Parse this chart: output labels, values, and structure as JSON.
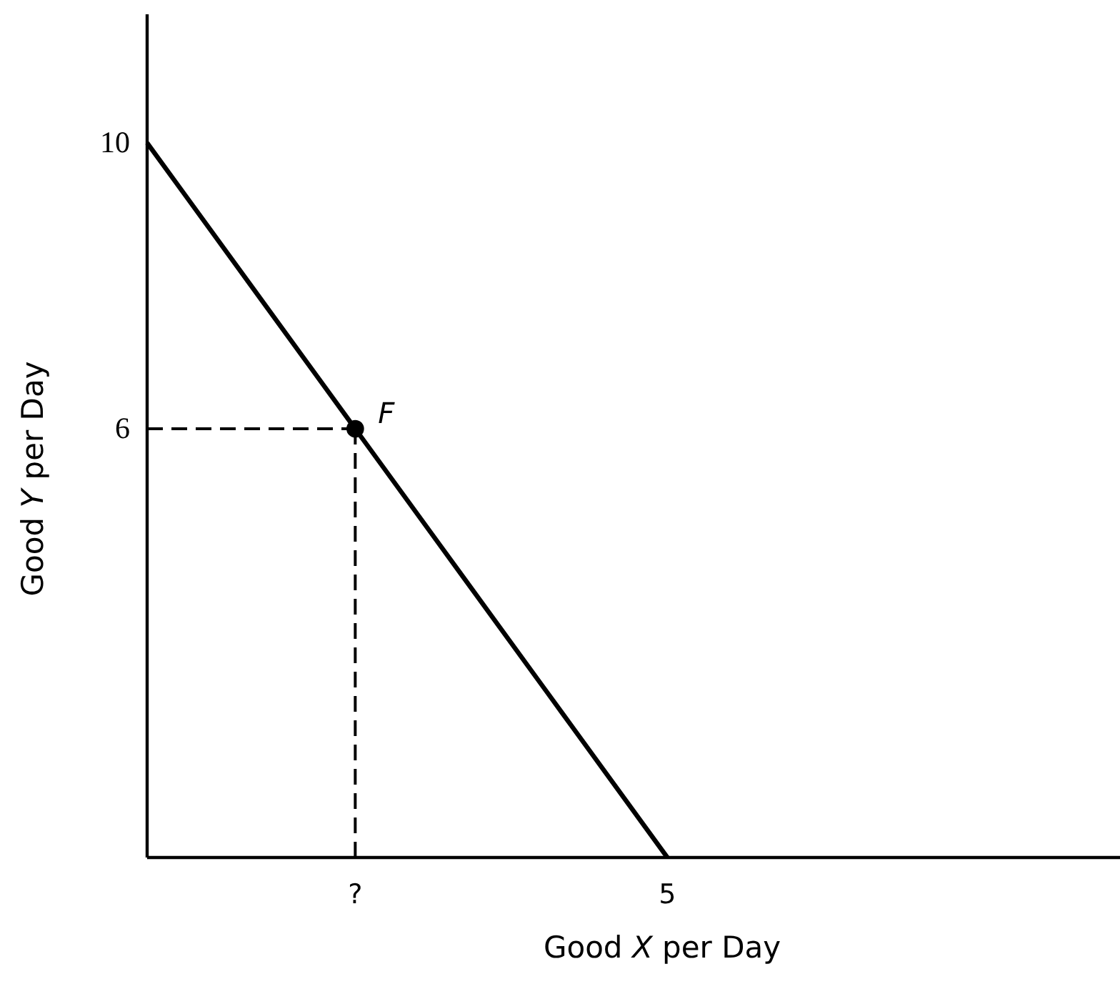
{
  "chart_data": {
    "type": "line",
    "xlabel": "Good X per Day",
    "ylabel": "Good Y per Day",
    "categories": [
      null,
      null,
      "?",
      null,
      null,
      "5"
    ],
    "ylim": [
      0,
      11.8
    ],
    "yticks": [
      6,
      10
    ],
    "series": [
      {
        "color": "#000000",
        "values": [
          10,
          8,
          6,
          4,
          2,
          0
        ],
        "line_style": "solid"
      },
      {
        "color": "#000000",
        "values": [
          6,
          6,
          6,
          null,
          null,
          null
        ],
        "line_style": "dashed"
      },
      {
        "color": "#000000",
        "x": [
          "?",
          "?"
        ],
        "values": [
          6,
          0
        ],
        "line_style": "dashed"
      },
      {
        "type": "scatter",
        "color": "#000000",
        "x": [
          "?"
        ],
        "values": [
          6
        ],
        "marker": "circle"
      }
    ],
    "annotations": [
      {
        "text": "F",
        "x": "?",
        "y": 6
      }
    ]
  }
}
